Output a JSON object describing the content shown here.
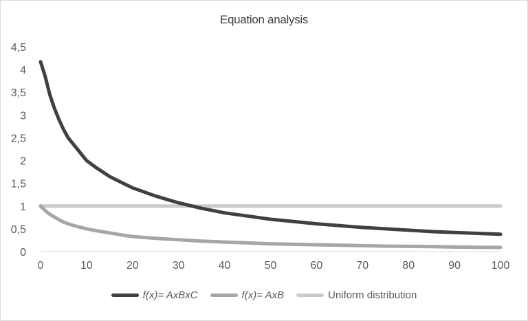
{
  "chart_data": {
    "type": "line",
    "title": "Equation analysis",
    "xlabel": "",
    "ylabel": "",
    "xlim": [
      0,
      100
    ],
    "ylim": [
      0,
      4.5
    ],
    "x_ticks": [
      "0",
      "10",
      "20",
      "30",
      "40",
      "50",
      "60",
      "70",
      "80",
      "90",
      "100"
    ],
    "y_ticks": [
      "0",
      "0,5",
      "1",
      "1,5",
      "2",
      "2,5",
      "3",
      "3,5",
      "4",
      "4,5"
    ],
    "grid": false,
    "legend_position": "bottom",
    "x": [
      0,
      1,
      2,
      3,
      4,
      5,
      6,
      8,
      10,
      12,
      15,
      18,
      20,
      25,
      30,
      35,
      40,
      45,
      50,
      55,
      60,
      65,
      70,
      75,
      80,
      85,
      90,
      95,
      100
    ],
    "series": [
      {
        "name": "f(x) = AxBxC",
        "color": "#404040",
        "values": [
          4.17,
          3.85,
          3.45,
          3.15,
          2.9,
          2.68,
          2.5,
          2.25,
          2.0,
          1.85,
          1.65,
          1.5,
          1.4,
          1.22,
          1.07,
          0.95,
          0.85,
          0.78,
          0.71,
          0.66,
          0.61,
          0.57,
          0.53,
          0.5,
          0.47,
          0.44,
          0.42,
          0.4,
          0.38
        ]
      },
      {
        "name": "f(x) = AxB",
        "color": "#a6a6a6",
        "values": [
          1.0,
          0.9,
          0.82,
          0.76,
          0.7,
          0.65,
          0.61,
          0.55,
          0.5,
          0.46,
          0.41,
          0.36,
          0.33,
          0.29,
          0.26,
          0.23,
          0.21,
          0.19,
          0.17,
          0.16,
          0.15,
          0.14,
          0.13,
          0.12,
          0.115,
          0.11,
          0.1,
          0.095,
          0.09
        ]
      },
      {
        "name": "Uniform distribution",
        "color": "#cacaca",
        "values": [
          1,
          1,
          1,
          1,
          1,
          1,
          1,
          1,
          1,
          1,
          1,
          1,
          1,
          1,
          1,
          1,
          1,
          1,
          1,
          1,
          1,
          1,
          1,
          1,
          1,
          1,
          1,
          1,
          1
        ]
      }
    ]
  },
  "legend": [
    {
      "prefix": "f(x)",
      "suffix": " = AxBxC"
    },
    {
      "prefix": "f(x)",
      "suffix": " = AxB"
    },
    {
      "prefix": "",
      "suffix": "Uniform distribution"
    }
  ]
}
